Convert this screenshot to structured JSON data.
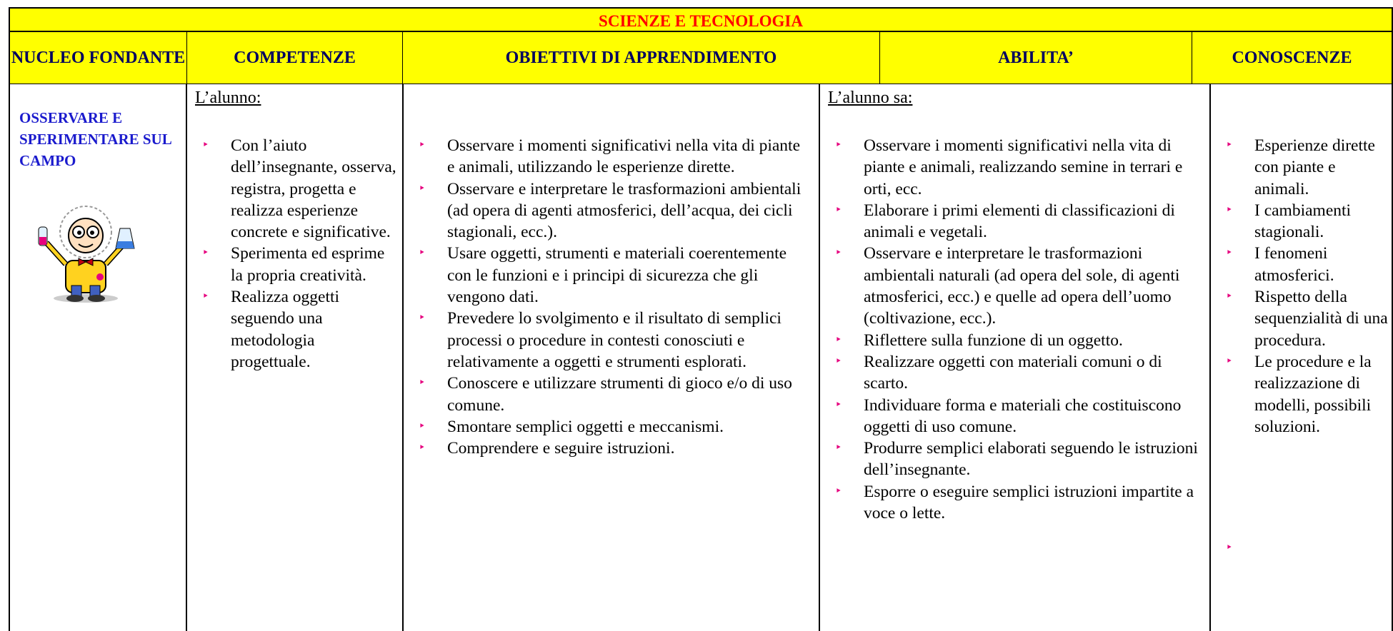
{
  "title": "SCIENZE E TECNOLOGIA",
  "headers": [
    "NUCLEO FONDANTE",
    "COMPETENZE",
    "OBIETTIVI DI APPRENDIMENTO",
    "ABILITA’",
    "CONOSCENZE"
  ],
  "nucleo": "OSSERVARE E SPERIMENTARE SUL CAMPO",
  "competenze": {
    "intro": "L’alunno:",
    "items": [
      "Con l’aiuto dell’insegnante, osserva, registra, progetta e realizza esperienze concrete e significative.",
      "Sperimenta ed esprime la propria creatività.",
      "Realizza oggetti seguendo una metodologia progettuale."
    ]
  },
  "obiettivi": {
    "items": [
      "Osservare i momenti significativi nella vita di piante e animali, utilizzando le esperienze dirette.",
      "Osservare e interpretare le trasformazioni ambientali (ad opera di agenti atmosferici, dell’acqua, dei cicli stagionali, ecc.).",
      "Usare oggetti, strumenti e materiali coerentemente con le funzioni e i principi di sicurezza che gli vengono dati.",
      "Prevedere lo svolgimento e il risultato di semplici processi o procedure in contesti conosciuti e relativamente a oggetti e strumenti esplorati.",
      "Conoscere e utilizzare strumenti di gioco e/o di uso comune.",
      "Smontare semplici oggetti e meccanismi.",
      "Comprendere e seguire istruzioni."
    ]
  },
  "abilita": {
    "intro": "L’alunno sa:",
    "items": [
      "Osservare i momenti significativi nella vita di piante e animali, realizzando semine in terrari e orti, ecc.",
      "Elaborare i primi elementi di classificazioni di animali e vegetali.",
      "Osservare e interpretare le trasformazioni ambientali naturali (ad opera del sole, di agenti atmosferici, ecc.) e quelle ad opera dell’uomo (coltivazione, ecc.).",
      "Riflettere sulla funzione di un oggetto.",
      "Realizzare oggetti con materiali comuni o di scarto.",
      "Individuare forma e materiali che costituiscono oggetti di uso comune.",
      "Produrre semplici elaborati seguendo le istruzioni dell’insegnante.",
      "Esporre o eseguire semplici istruzioni impartite a voce o lette."
    ]
  },
  "conoscenze": {
    "items": [
      "Esperienze dirette con piante e animali.",
      "I cambiamenti stagionali.",
      "I fenomeni atmosferici.",
      "Rispetto della sequenzialità di una procedura.",
      "Le procedure e la realizzazione di modelli, possibili soluzioni."
    ]
  }
}
